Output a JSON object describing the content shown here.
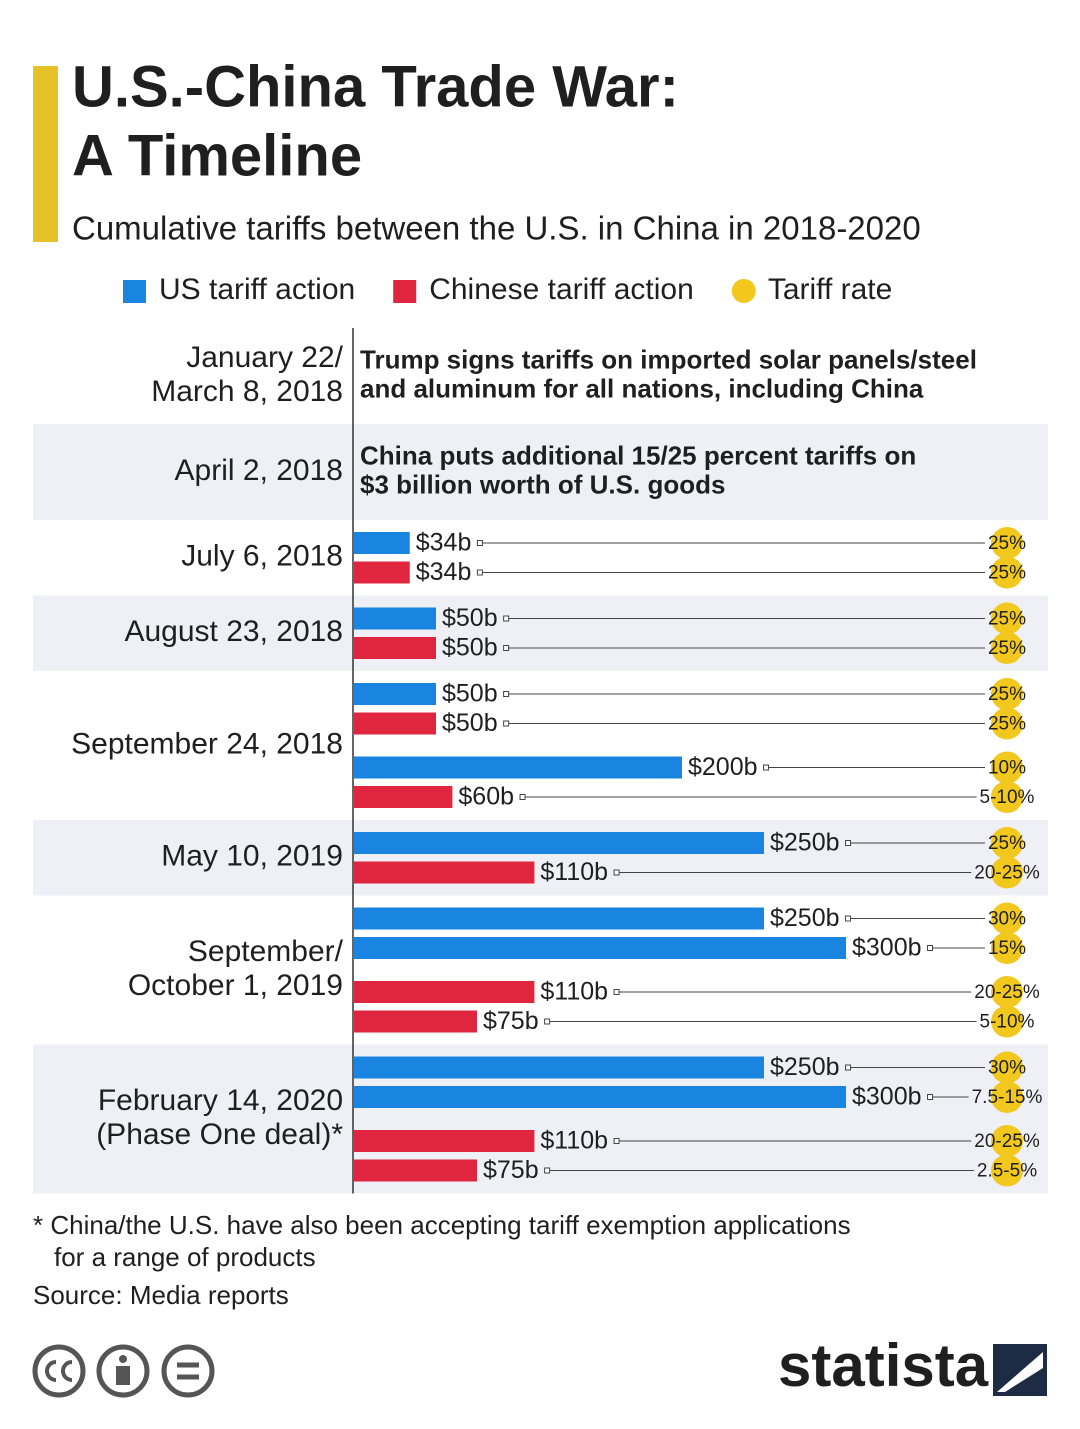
{
  "chart_data": {
    "type": "bar",
    "orientation": "horizontal",
    "title": [
      "U.S.-China Trade War:",
      "A Timeline"
    ],
    "subtitle": "Cumulative tariffs between the U.S. in China in 2018-2020",
    "series": [
      {
        "name": "US tariff action",
        "color": "#1a85e0"
      },
      {
        "name": "Chinese tariff action",
        "color": "#e0263f"
      }
    ],
    "rate_legend": {
      "name": "Tariff rate",
      "color": "#f2c81e"
    },
    "groups": [
      {
        "date": [
          "January 22/",
          "March 8, 2018"
        ],
        "note_series": 0,
        "note": [
          "Trump signs tariffs on imported solar panels/steel",
          "and aluminum for all nations, including China"
        ]
      },
      {
        "date": [
          "April 2, 2018"
        ],
        "note_series": 1,
        "note": [
          "China puts additional 15/25 percent tariffs on",
          "$3 billion worth of U.S. goods"
        ]
      },
      {
        "date": [
          "July 6, 2018"
        ],
        "bars": [
          {
            "series": 0,
            "value": 34,
            "value_label": "$34b",
            "rate": "25%"
          },
          {
            "series": 1,
            "value": 34,
            "value_label": "$34b",
            "rate": "25%"
          }
        ]
      },
      {
        "date": [
          "August 23, 2018"
        ],
        "bars": [
          {
            "series": 0,
            "value": 50,
            "value_label": "$50b",
            "rate": "25%"
          },
          {
            "series": 1,
            "value": 50,
            "value_label": "$50b",
            "rate": "25%"
          }
        ]
      },
      {
        "date": [
          "September 24, 2018"
        ],
        "bars": [
          {
            "series": 0,
            "value": 50,
            "value_label": "$50b",
            "rate": "25%"
          },
          {
            "series": 1,
            "value": 50,
            "value_label": "$50b",
            "rate": "25%"
          },
          {
            "series": 0,
            "value": 200,
            "value_label": "$200b",
            "rate": "10%"
          },
          {
            "series": 1,
            "value": 60,
            "value_label": "$60b",
            "rate": "5-10%"
          }
        ]
      },
      {
        "date": [
          "May 10, 2019"
        ],
        "bars": [
          {
            "series": 0,
            "value": 250,
            "value_label": "$250b",
            "rate": "25%"
          },
          {
            "series": 1,
            "value": 110,
            "value_label": "$110b",
            "rate": "20-25%"
          }
        ]
      },
      {
        "date": [
          "September/",
          "October 1, 2019"
        ],
        "bars": [
          {
            "series": 0,
            "value": 250,
            "value_label": "$250b",
            "rate": "30%"
          },
          {
            "series": 0,
            "value": 300,
            "value_label": "$300b",
            "rate": "15%"
          },
          {
            "series": 1,
            "value": 110,
            "value_label": "$110b",
            "rate": "20-25%"
          },
          {
            "series": 1,
            "value": 75,
            "value_label": "$75b",
            "rate": "5-10%"
          }
        ]
      },
      {
        "date": [
          "February 14, 2020",
          "(Phase One deal)*"
        ],
        "bars": [
          {
            "series": 0,
            "value": 250,
            "value_label": "$250b",
            "rate": "30%"
          },
          {
            "series": 0,
            "value": 300,
            "value_label": "$300b",
            "rate": "7.5-15%"
          },
          {
            "series": 1,
            "value": 110,
            "value_label": "$110b",
            "rate": "20-25%"
          },
          {
            "series": 1,
            "value": 75,
            "value_label": "$75b",
            "rate": "2.5-5%"
          }
        ]
      }
    ],
    "footnote": [
      "* China/the U.S. have also been accepting tariff exemption applications",
      "for a range of products"
    ],
    "source": "Source: Media reports",
    "logo": "statista"
  }
}
